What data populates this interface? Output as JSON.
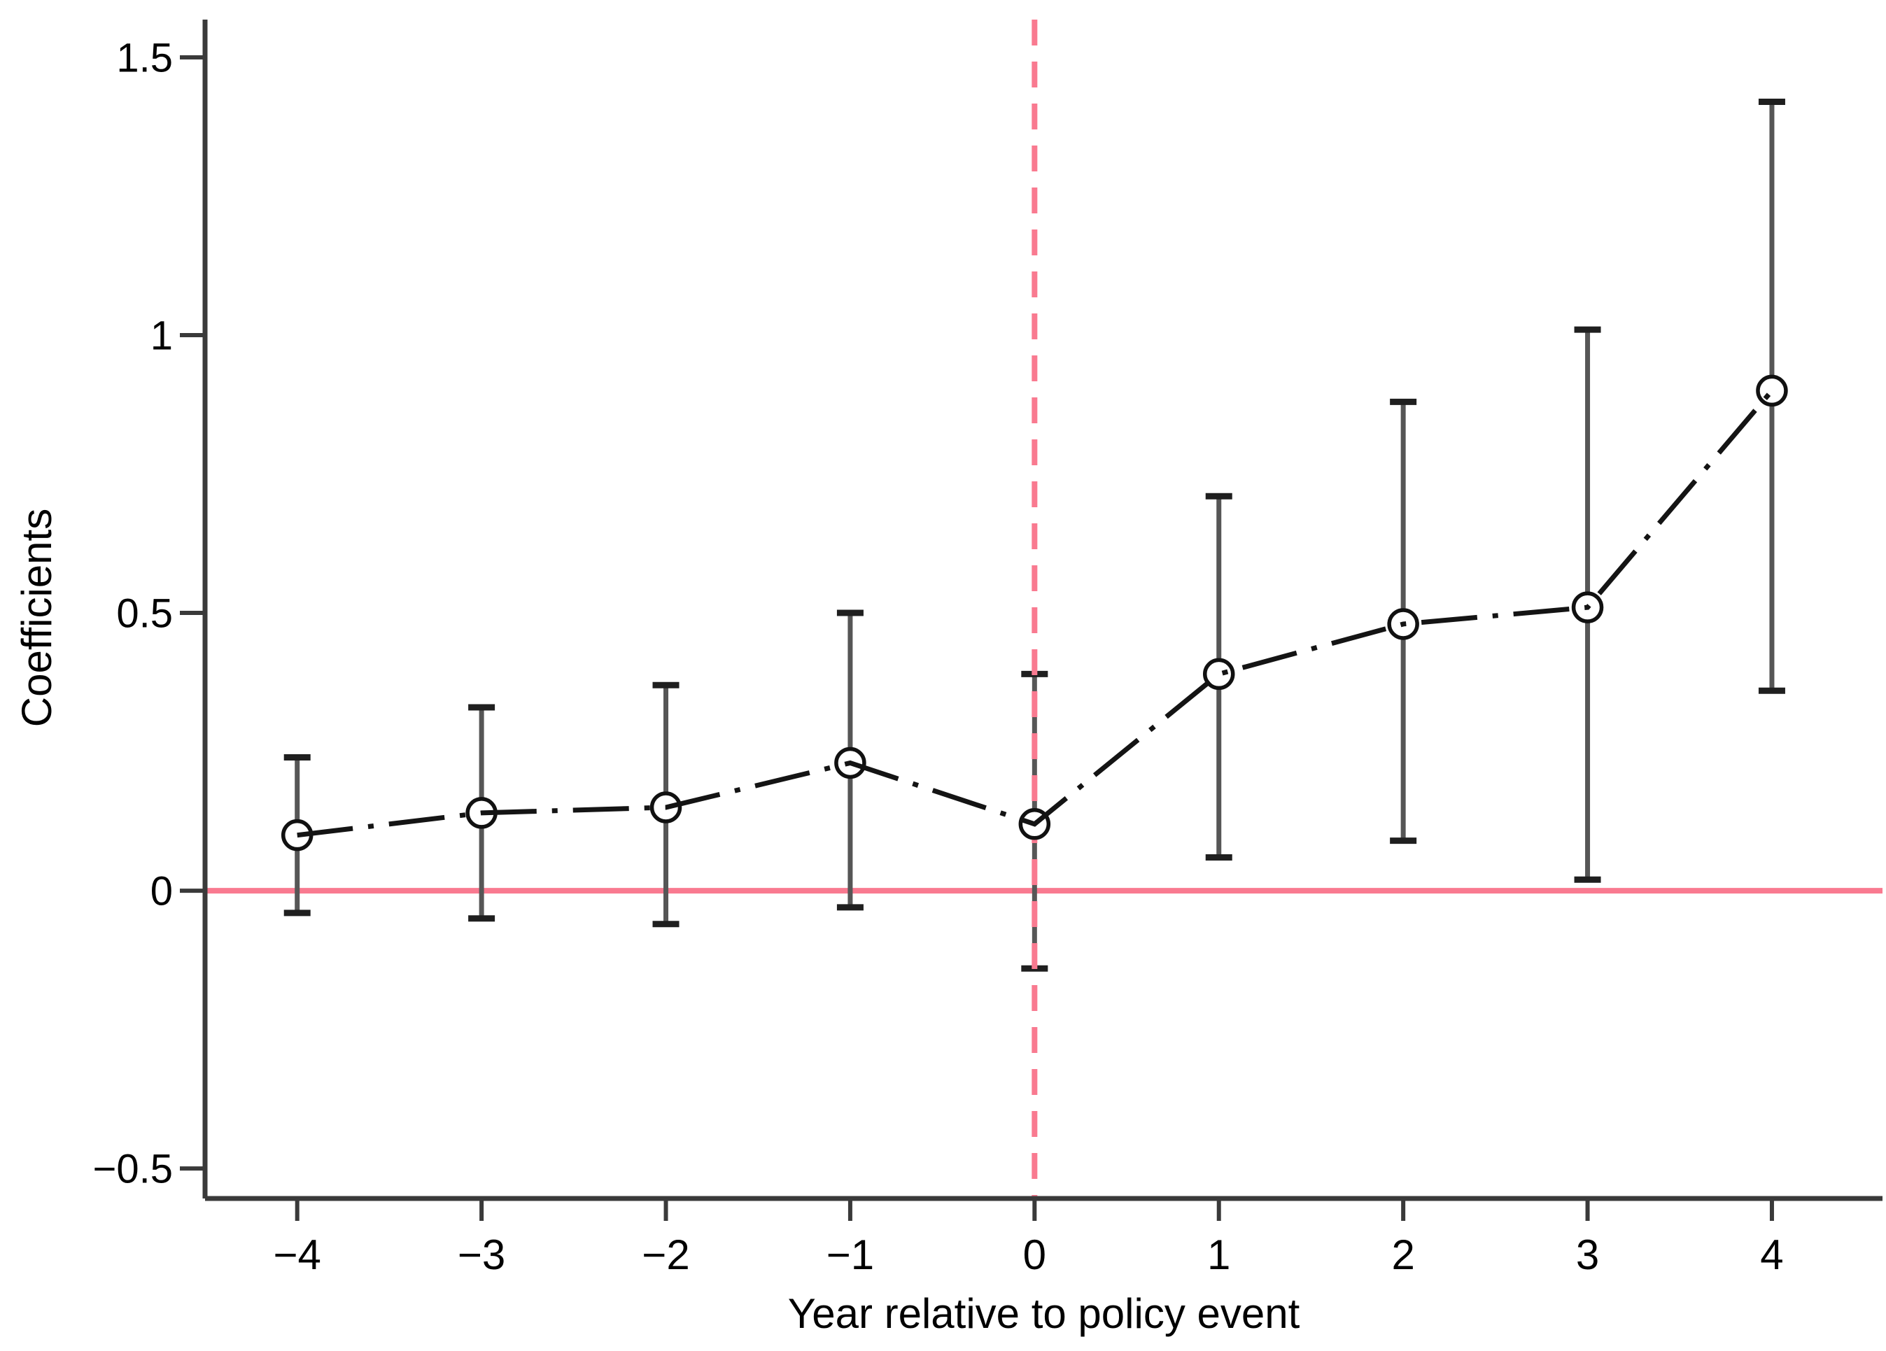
{
  "page": {
    "background": "#ffffff"
  },
  "chart_data": {
    "type": "line",
    "subtype": "event-study-coefficient-plot",
    "title": "",
    "xlabel": "Year relative to policy event",
    "ylabel": "Coefficients",
    "x": [
      -4,
      -3,
      -2,
      -1,
      0,
      1,
      2,
      3,
      4
    ],
    "x_tick_labels": [
      "−4",
      "−3",
      "−2",
      "−1",
      "0",
      "1",
      "2",
      "3",
      "4"
    ],
    "y_ticks": [
      -0.5,
      0,
      0.5,
      1,
      1.5
    ],
    "y_tick_labels": [
      "−0.5",
      "0",
      "0.5",
      "1",
      "1.5"
    ],
    "xlim": [
      -4.5,
      4.6
    ],
    "ylim": [
      -0.554,
      1.568
    ],
    "grid": false,
    "legend_position": "none",
    "series": [
      {
        "name": "Coefficients",
        "marker": "open-circle",
        "line_style": "dash-dot",
        "values": [
          0.1,
          0.14,
          0.15,
          0.23,
          0.12,
          0.39,
          0.48,
          0.51,
          0.9
        ],
        "ci_low": [
          -0.04,
          -0.05,
          -0.06,
          -0.03,
          -0.14,
          0.06,
          0.09,
          0.02,
          0.36
        ],
        "ci_high": [
          0.24,
          0.33,
          0.37,
          0.5,
          0.39,
          0.71,
          0.88,
          1.01,
          1.42
        ]
      }
    ],
    "reference_lines": [
      {
        "orientation": "horizontal",
        "value": 0,
        "style": "solid"
      },
      {
        "orientation": "vertical",
        "value": 0,
        "style": "dashed"
      }
    ],
    "colors": {
      "accent_pink": "#f97a90",
      "series_line": "#141414",
      "marker_stroke": "#111111",
      "marker_fill": "#ffffff",
      "error_bar_stem": "#565656",
      "error_bar_cap": "#1f1f1f",
      "axis": "#3a3a3a",
      "text": "#000000"
    }
  }
}
